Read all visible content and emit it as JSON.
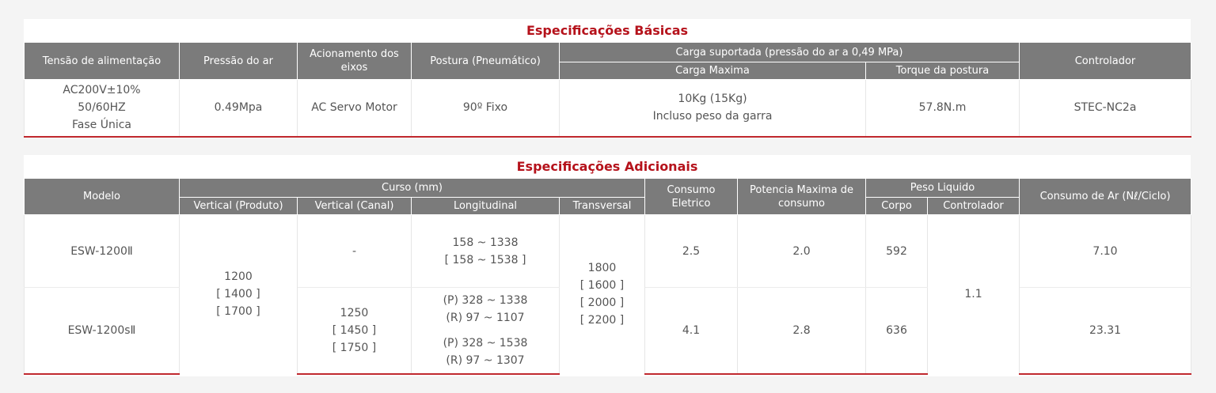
{
  "basic_specs": {
    "title": "Especificações Básicas",
    "headers": {
      "tensao": "Tensão de alimentação",
      "pressao": "Pressão do ar",
      "acionamento": "Acionamento dos eixos",
      "postura": "Postura (Pneumático)",
      "carga": "Carga suportada (pressão do ar a 0,49 MPa)",
      "carga_maxima": "Carga Maxima",
      "torque": "Torque da postura",
      "controlador": "Controlador"
    },
    "row": {
      "tensao": [
        "AC200V±10%",
        "50/60HZ",
        "Fase Única"
      ],
      "pressao": "0.49Mpa",
      "acionamento": "AC Servo Motor",
      "postura": "90º Fixo",
      "carga_maxima": [
        "10Kg (15Kg)",
        "Incluso peso da garra"
      ],
      "torque": "57.8N.m",
      "controlador": "STEC-NC2a"
    }
  },
  "additional_specs": {
    "title": "Especificações Adicionais",
    "headers": {
      "modelo": "Modelo",
      "curso": "Curso (mm)",
      "vertical_produto": "Vertical (Produto)",
      "vertical_canal": "Vertical (Canal)",
      "longitudinal": "Longitudinal",
      "transversal": "Transversal",
      "consumo_eletrico": "Consumo Eletrico",
      "potencia": "Potencia Maxima de consumo",
      "peso": "Peso Liquido",
      "corpo": "Corpo",
      "controlador": "Controlador",
      "consumo_ar": "Consumo de Ar (Nℓ/Ciclo)"
    },
    "modelo": [
      "ESW-1200Ⅱ",
      "ESW-1200sⅡ"
    ],
    "vertical_produto": [
      "1200",
      "[ 1400 ]",
      "[ 1700 ]"
    ],
    "vertical_canal": {
      "row1": "-",
      "row2": [
        "1250",
        "[ 1450 ]",
        "[ 1750 ]"
      ]
    },
    "longitudinal": {
      "row1": [
        "158 ~ 1338",
        "[ 158 ~ 1538 ]"
      ],
      "row2": [
        [
          "(P) 328 ~ 1338",
          "(R) 97 ~ 1107"
        ],
        [
          "(P) 328 ~ 1538",
          "(R) 97 ~ 1307"
        ]
      ]
    },
    "transversal": [
      "1800",
      "[ 1600 ]",
      "[ 2000 ]",
      "[ 2200 ]"
    ],
    "consumo_eletrico": [
      "2.5",
      "4.1"
    ],
    "potencia": [
      "2.0",
      "2.8"
    ],
    "corpo": [
      "592",
      "636"
    ],
    "controlador": "1.1",
    "consumo_ar": [
      "7.10",
      "23.31"
    ]
  }
}
